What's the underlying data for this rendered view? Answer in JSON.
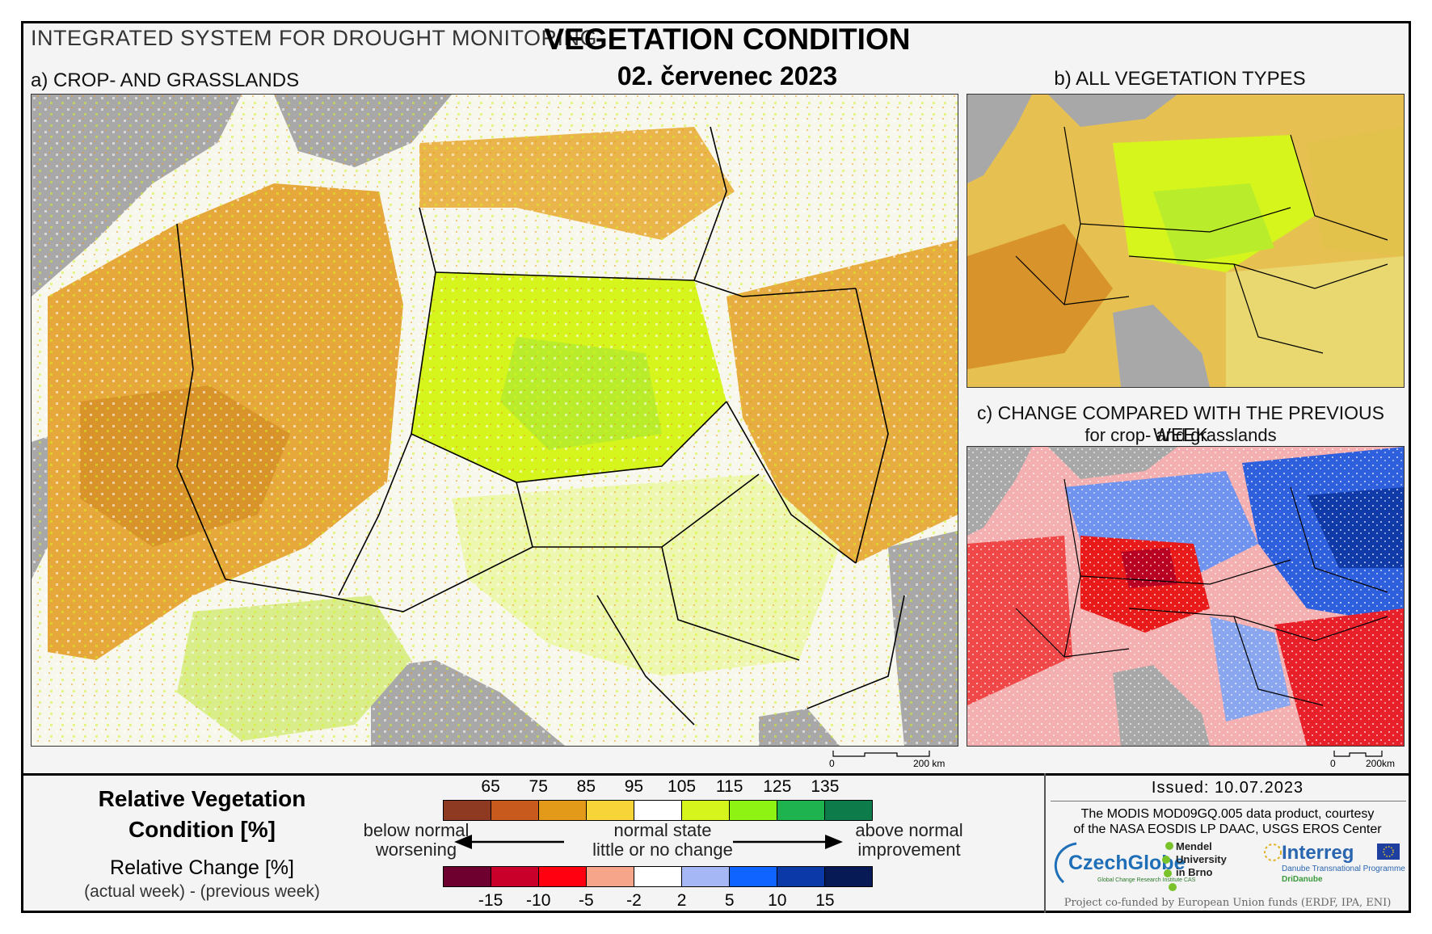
{
  "header": {
    "system_title": "INTEGRATED SYSTEM FOR DROUGHT MONITORING",
    "main_title": "VEGETATION CONDITION",
    "date": "02. červenec 2023"
  },
  "panels": {
    "a_label": "a) CROP- AND GRASSLANDS",
    "b_label": "b) ALL VEGETATION TYPES",
    "c_label": "c) CHANGE COMPARED WITH THE PREVIOUS WEEK",
    "c_sublabel": "for crop- and grasslands"
  },
  "scalebars": {
    "main": {
      "zero": "0",
      "end": "200 km"
    },
    "small": {
      "zero": "0",
      "end": "200km"
    }
  },
  "legend": {
    "rvc_title_line1": "Relative Vegetation",
    "rvc_title_line2": "Condition [%]",
    "rc_title": "Relative Change [%]",
    "rc_subtitle": "(actual week) - (previous week)",
    "rvc_ticks": [
      "65",
      "75",
      "85",
      "95",
      "105",
      "115",
      "125",
      "135"
    ],
    "rvc_colors": [
      "#8e3a22",
      "#c85a1e",
      "#e39a18",
      "#f7d438",
      "#ffffff",
      "#d6f51c",
      "#8ef212",
      "#1fb350",
      "#0e7c4a"
    ],
    "rc_ticks": [
      "-15",
      "-10",
      "-5",
      "-2",
      "2",
      "5",
      "10",
      "15"
    ],
    "rc_colors": [
      "#6e0030",
      "#c8002a",
      "#ff0010",
      "#f7a58a",
      "#ffffff",
      "#a5b8f5",
      "#0f63ff",
      "#0b3aa8",
      "#081a55"
    ],
    "left_top": "below normal",
    "left_bottom": "worsening",
    "mid_top": "normal state",
    "mid_bottom": "little or no change",
    "right_top": "above normal",
    "right_bottom": "improvement"
  },
  "info": {
    "issued": "Issued: 10.07.2023",
    "credit_line1": "The MODIS MOD09GQ.005 data product, courtesy",
    "credit_line2": "of the NASA EOSDIS LP DAAC, USGS EROS Center",
    "cofunded": "Project co-funded by European Union funds (ERDF, IPA, ENI)"
  },
  "logos": {
    "czechglobe": "CzechGlobe",
    "czechglobe_sub": "Global Change Research Institute CAS",
    "mendel_1": "Mendel",
    "mendel_2": "University",
    "mendel_3": "in Brno",
    "interreg": "Interreg",
    "interreg_sub": "Danube Transnational Programme",
    "interreg_sub2": "DriDanube"
  }
}
